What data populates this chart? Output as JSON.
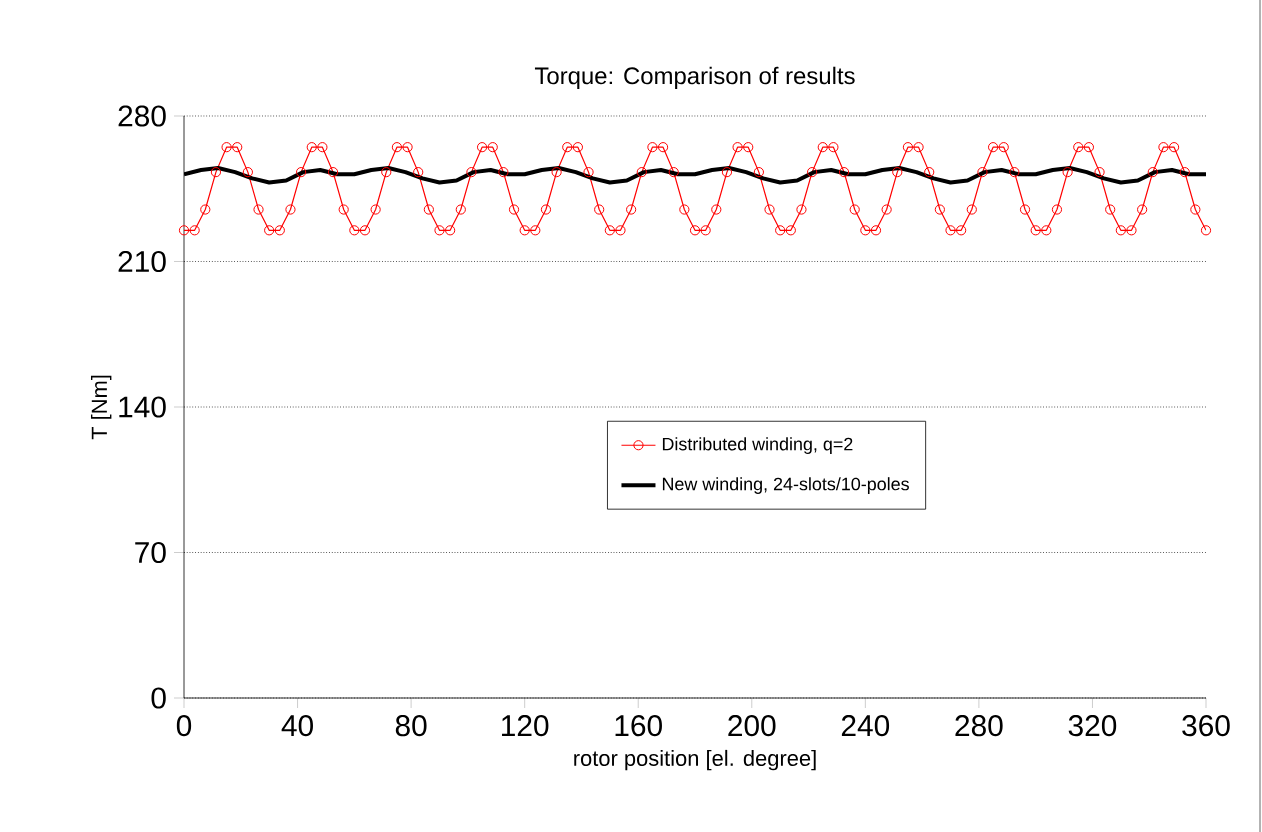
{
  "chart_data": {
    "type": "line",
    "title": "Torque: Comparison of results",
    "xlabel": "rotor position  [el. degree]",
    "ylabel": "T  [Nm]",
    "xlim": [
      0,
      360
    ],
    "xticks": [
      0,
      40,
      80,
      120,
      160,
      200,
      240,
      280,
      320,
      360
    ],
    "ylim": [
      0,
      280
    ],
    "yticks": [
      0,
      70,
      140,
      210,
      280
    ],
    "grid": "y",
    "legend": "center",
    "series": [
      {
        "name": "Distributed winding, q=2",
        "color": "#ff0000",
        "marker": "circle",
        "x": [
          0,
          3.75,
          7.5,
          11.25,
          15,
          18.75,
          22.5,
          26.25,
          30,
          33.75,
          37.5,
          41.25,
          45,
          48.75,
          52.5,
          56.25,
          60,
          63.75,
          67.5,
          71.25,
          75,
          78.75,
          82.5,
          86.25,
          90,
          93.75,
          97.5,
          101.25,
          105,
          108.75,
          112.5,
          116.25,
          120,
          123.75,
          127.5,
          131.25,
          135,
          138.75,
          142.5,
          146.25,
          150,
          153.75,
          157.5,
          161.25,
          165,
          168.75,
          172.5,
          176.25,
          180,
          183.75,
          187.5,
          191.25,
          195,
          198.75,
          202.5,
          206.25,
          210,
          213.75,
          217.5,
          221.25,
          225,
          228.75,
          232.5,
          236.25,
          240,
          243.75,
          247.5,
          251.25,
          255,
          258.75,
          262.5,
          266.25,
          270,
          273.75,
          277.5,
          281.25,
          285,
          288.75,
          292.5,
          296.25,
          300,
          303.75,
          307.5,
          311.25,
          315,
          318.75,
          322.5,
          326.25,
          330,
          333.75,
          337.5,
          341.25,
          345,
          348.75,
          352.5,
          356.25,
          360
        ],
        "values": [
          225,
          225,
          235,
          253,
          265,
          265,
          253,
          235,
          225,
          225,
          235,
          253,
          265,
          265,
          253,
          235,
          225,
          225,
          235,
          253,
          265,
          265,
          253,
          235,
          225,
          225,
          235,
          253,
          265,
          265,
          253,
          235,
          225,
          225,
          235,
          253,
          265,
          265,
          253,
          235,
          225,
          225,
          235,
          253,
          265,
          265,
          253,
          235,
          225,
          225,
          235,
          253,
          265,
          265,
          253,
          235,
          225,
          225,
          235,
          253,
          265,
          265,
          253,
          235,
          225,
          225,
          235,
          253,
          265,
          265,
          253,
          235,
          225,
          225,
          235,
          253,
          265,
          265,
          253,
          235,
          225,
          225,
          235,
          253,
          265,
          265,
          253,
          235,
          225,
          225,
          235,
          253,
          265,
          265,
          253,
          235,
          225
        ]
      },
      {
        "name": "New  winding, 24-slots/10-poles",
        "color": "#000000",
        "marker": "none",
        "x": [
          0,
          6,
          12,
          18,
          24,
          30,
          36,
          42,
          48,
          54,
          60,
          66,
          72,
          78,
          84,
          90,
          96,
          102,
          108,
          114,
          120,
          126,
          132,
          138,
          144,
          150,
          156,
          162,
          168,
          174,
          180,
          186,
          192,
          198,
          204,
          210,
          216,
          222,
          228,
          234,
          240,
          246,
          252,
          258,
          264,
          270,
          276,
          282,
          288,
          294,
          300,
          306,
          312,
          318,
          324,
          330,
          336,
          342,
          348,
          354,
          360
        ],
        "values": [
          252,
          254,
          255,
          253,
          250,
          248,
          249,
          253,
          254,
          252,
          252,
          254,
          255,
          253,
          250,
          248,
          249,
          253,
          254,
          252,
          252,
          254,
          255,
          253,
          250,
          248,
          249,
          253,
          254,
          252,
          252,
          254,
          255,
          253,
          250,
          248,
          249,
          253,
          254,
          252,
          252,
          254,
          255,
          253,
          250,
          248,
          249,
          253,
          254,
          252,
          252,
          254,
          255,
          253,
          250,
          248,
          249,
          253,
          254,
          252,
          252
        ]
      }
    ]
  }
}
